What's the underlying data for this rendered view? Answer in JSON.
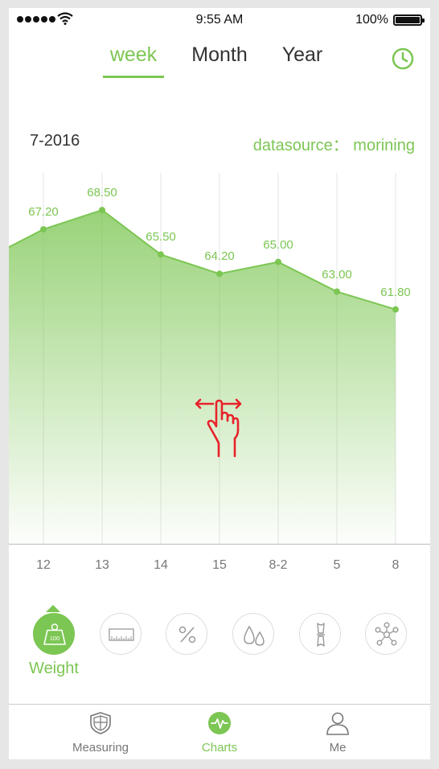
{
  "status_bar": {
    "time": "9:55 AM",
    "battery": "100%"
  },
  "tabs": [
    {
      "label": "week",
      "active": true
    },
    {
      "label": "Month",
      "active": false
    },
    {
      "label": "Year",
      "active": false
    }
  ],
  "header": {
    "date": "7-2016",
    "datasource": "datasource： morining"
  },
  "colors": {
    "accent": "#7cc653",
    "gesture": "#e8222b"
  },
  "chart_data": {
    "type": "area",
    "x": [
      "12",
      "13",
      "14",
      "15",
      "8-2",
      "5",
      "8"
    ],
    "values": [
      67.2,
      68.5,
      65.5,
      64.2,
      65.0,
      63.0,
      61.8
    ],
    "value_labels": [
      "67.20",
      "68.50",
      "65.50",
      "64.20",
      "65.00",
      "63.00",
      "61.80"
    ],
    "ylim": [
      46,
      71
    ],
    "grid": "vertical"
  },
  "categories": [
    {
      "name": "Weight",
      "icon": "weight-icon",
      "badge": "100",
      "active": true
    },
    {
      "name": "",
      "icon": "ruler-icon",
      "active": false
    },
    {
      "name": "",
      "icon": "percent-icon",
      "active": false
    },
    {
      "name": "",
      "icon": "water-drops-icon",
      "active": false
    },
    {
      "name": "",
      "icon": "bone-icon",
      "active": false
    },
    {
      "name": "",
      "icon": "molecule-icon",
      "active": false
    }
  ],
  "active_category_label": "Weight",
  "weight_badge": "100",
  "bottom_nav": [
    {
      "label": "Measuring",
      "icon": "shield-icon",
      "active": false
    },
    {
      "label": "Charts",
      "icon": "pulse-icon",
      "active": true
    },
    {
      "label": "Me",
      "icon": "person-icon",
      "active": false
    }
  ]
}
